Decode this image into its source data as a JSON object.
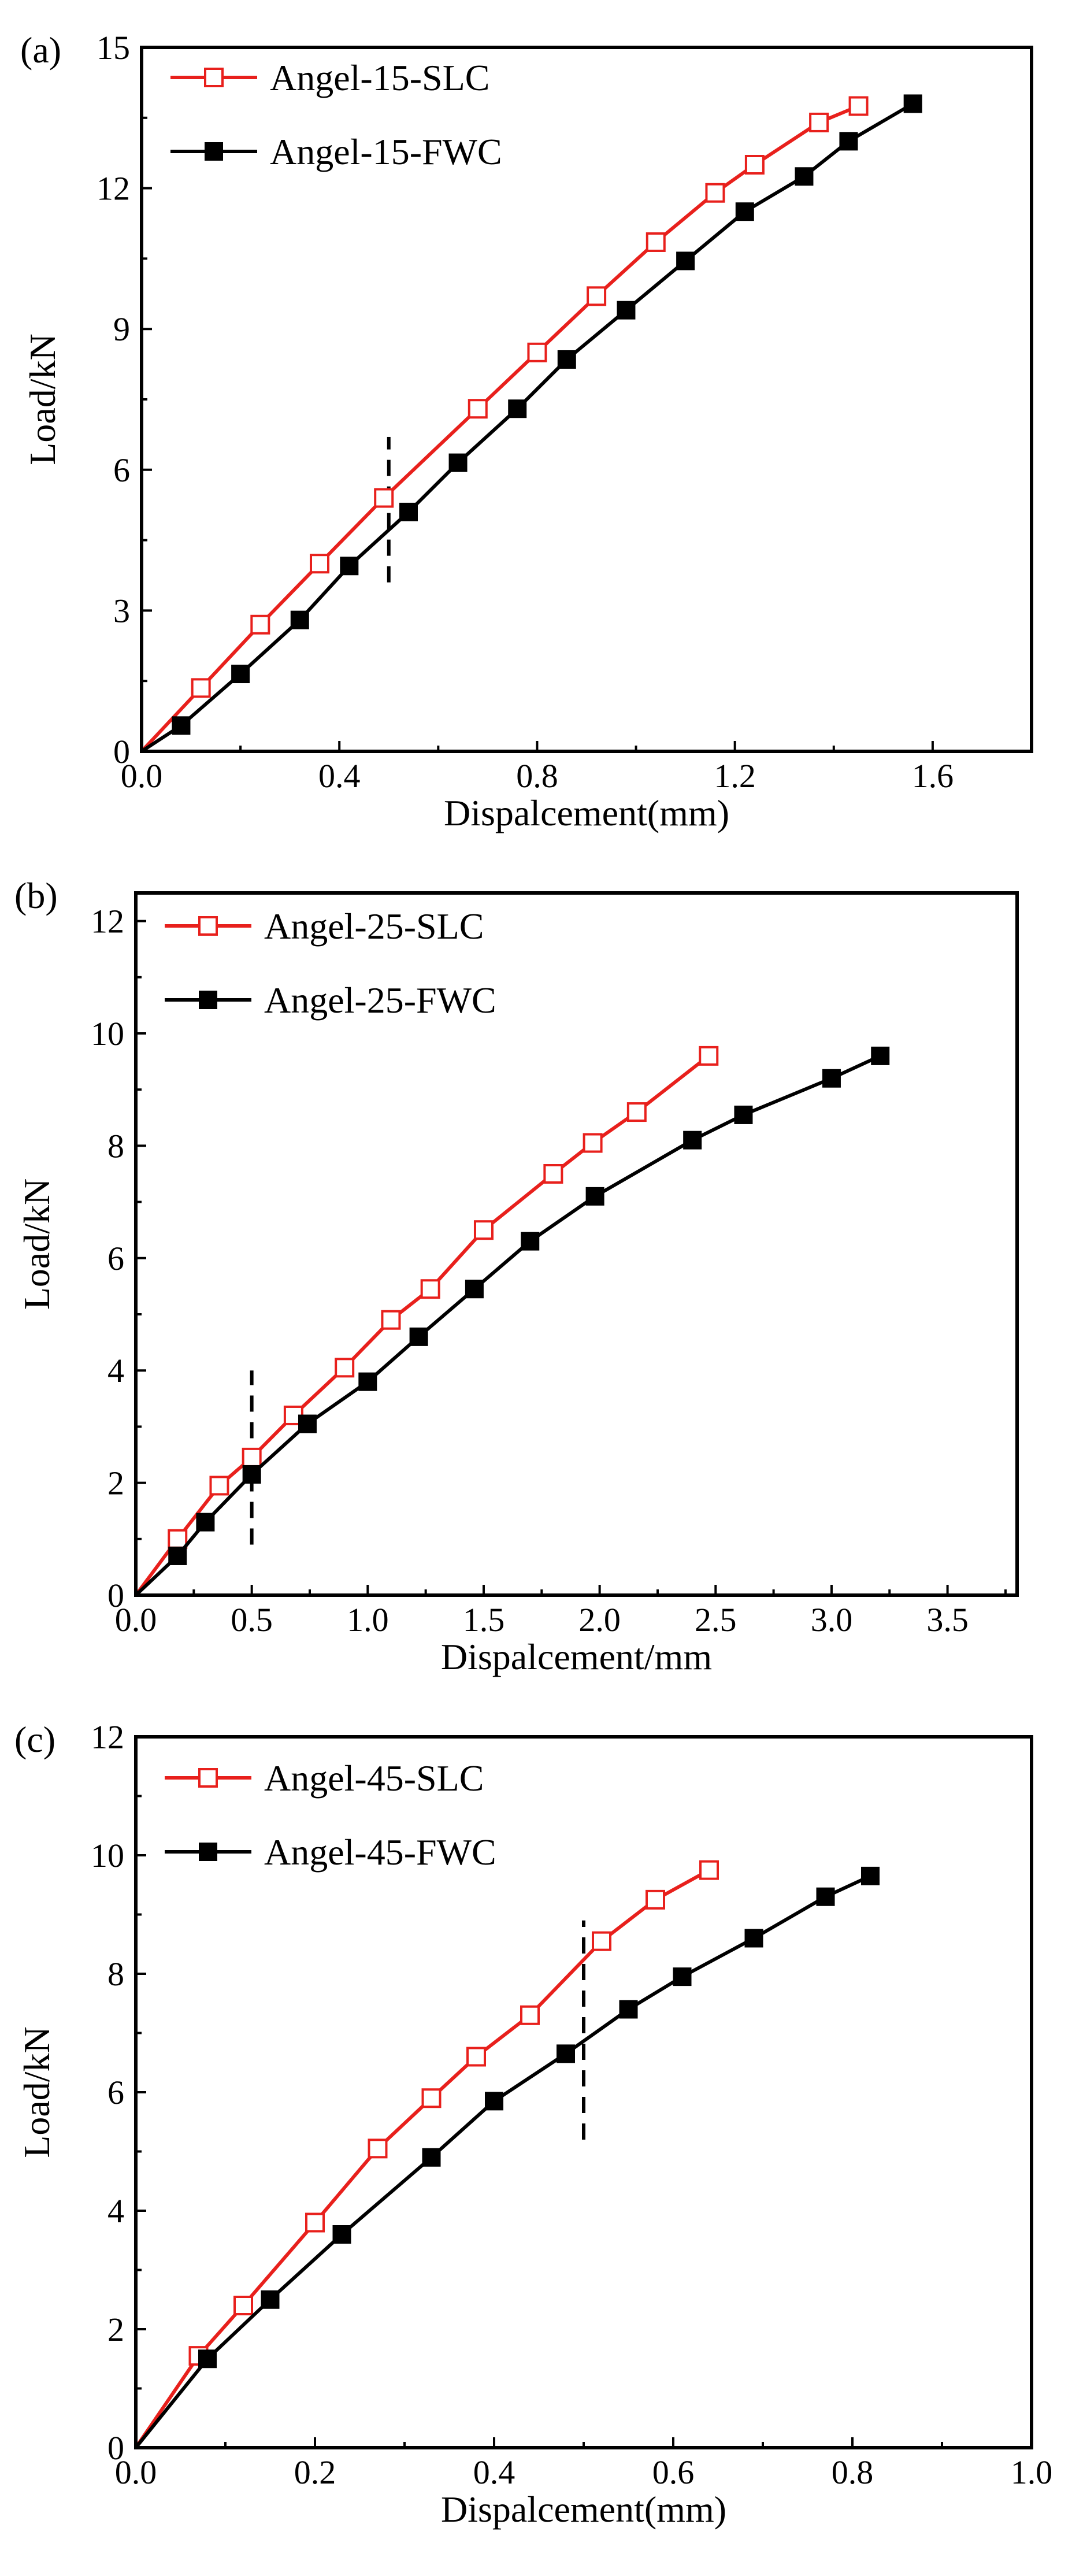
{
  "figure": {
    "colors": {
      "slc": "#e8201c",
      "fwc": "#000000",
      "axis": "#000000",
      "background": "#ffffff"
    }
  },
  "chart_data": [
    {
      "type": "line",
      "panel_label": "(a)",
      "title": "",
      "xlabel": "Dispalcement(mm)",
      "ylabel": "Load/kN",
      "xlim": [
        0,
        1.8
      ],
      "ylim": [
        0,
        15
      ],
      "xticks": [
        "0.0",
        "0.4",
        "0.8",
        "1.2",
        "1.6"
      ],
      "yticks": [
        "0",
        "3",
        "6",
        "9",
        "12",
        "15"
      ],
      "grid": false,
      "legend_position": "top-left",
      "series": [
        {
          "name": "Angel-15-SLC",
          "marker": "open-square",
          "color": "#e8201c",
          "x": [
            0,
            0.12,
            0.24,
            0.36,
            0.49,
            0.68,
            0.8,
            0.92,
            1.04,
            1.16,
            1.24,
            1.37,
            1.45
          ],
          "y": [
            0,
            1.35,
            2.7,
            4.0,
            5.4,
            7.3,
            8.5,
            9.7,
            10.85,
            11.9,
            12.5,
            13.4,
            13.75
          ]
        },
        {
          "name": "Angel-15-FWC",
          "marker": "filled-square",
          "color": "#000000",
          "x": [
            0,
            0.08,
            0.2,
            0.32,
            0.42,
            0.54,
            0.64,
            0.76,
            0.86,
            0.98,
            1.1,
            1.22,
            1.34,
            1.43,
            1.56
          ],
          "y": [
            0,
            0.55,
            1.65,
            2.8,
            3.95,
            5.1,
            6.15,
            7.3,
            8.35,
            9.4,
            10.45,
            11.5,
            12.25,
            13.0,
            13.8
          ]
        }
      ],
      "reference_line": {
        "x": 0.5,
        "y_range": [
          3.6,
          6.7
        ],
        "style": "dashed"
      }
    },
    {
      "type": "line",
      "panel_label": "(b)",
      "title": "",
      "xlabel": "Dispalcement/mm",
      "ylabel": "Load/kN",
      "xlim": [
        0,
        3.8
      ],
      "ylim": [
        0,
        12.5
      ],
      "xticks": [
        "0.0",
        "0.5",
        "1.0",
        "1.5",
        "2.0",
        "2.5",
        "3.0",
        "3.5"
      ],
      "yticks": [
        "0",
        "2",
        "4",
        "6",
        "8",
        "10",
        "12"
      ],
      "grid": false,
      "legend_position": "top-left",
      "series": [
        {
          "name": "Angel-25-SLC",
          "marker": "open-square",
          "color": "#e8201c",
          "x": [
            0,
            0.18,
            0.36,
            0.5,
            0.68,
            0.9,
            1.1,
            1.27,
            1.5,
            1.8,
            1.97,
            2.16,
            2.47
          ],
          "y": [
            0,
            1.0,
            1.95,
            2.45,
            3.2,
            4.05,
            4.9,
            5.45,
            6.5,
            7.5,
            8.05,
            8.6,
            9.6
          ]
        },
        {
          "name": "Angel-25-FWC",
          "marker": "filled-square",
          "color": "#000000",
          "x": [
            0,
            0.18,
            0.3,
            0.5,
            0.74,
            1.0,
            1.22,
            1.46,
            1.7,
            1.98,
            2.4,
            2.62,
            3.0,
            3.21
          ],
          "y": [
            0,
            0.7,
            1.3,
            2.15,
            3.05,
            3.8,
            4.6,
            5.45,
            6.3,
            7.1,
            8.1,
            8.55,
            9.2,
            9.6
          ]
        }
      ],
      "reference_line": {
        "x": 0.5,
        "y_range": [
          0.9,
          4.0
        ],
        "style": "dashed"
      }
    },
    {
      "type": "line",
      "panel_label": "(c)",
      "title": "",
      "xlabel": "Dispalcement(mm)",
      "ylabel": "Load/kN",
      "xlim": [
        0,
        1.0
      ],
      "ylim": [
        0,
        12
      ],
      "xticks": [
        "0.0",
        "0.2",
        "0.4",
        "0.6",
        "0.8",
        "1.0"
      ],
      "yticks": [
        "0",
        "2",
        "4",
        "6",
        "8",
        "10",
        "12"
      ],
      "grid": false,
      "legend_position": "top-left",
      "series": [
        {
          "name": "Angel-45-SLC",
          "marker": "open-square",
          "color": "#e8201c",
          "x": [
            0,
            0.07,
            0.12,
            0.2,
            0.27,
            0.33,
            0.38,
            0.44,
            0.52,
            0.58,
            0.64
          ],
          "y": [
            0,
            1.55,
            2.4,
            3.8,
            5.05,
            5.9,
            6.6,
            7.3,
            8.55,
            9.25,
            9.75
          ]
        },
        {
          "name": "Angel-45-FWC",
          "marker": "filled-square",
          "color": "#000000",
          "x": [
            0,
            0.08,
            0.15,
            0.23,
            0.33,
            0.4,
            0.48,
            0.55,
            0.61,
            0.69,
            0.77,
            0.82
          ],
          "y": [
            0,
            1.5,
            2.5,
            3.6,
            4.9,
            5.85,
            6.65,
            7.4,
            7.95,
            8.6,
            9.3,
            9.65
          ]
        }
      ],
      "reference_line": {
        "x": 0.5,
        "y_range": [
          5.2,
          8.9
        ],
        "style": "dashed"
      }
    }
  ]
}
